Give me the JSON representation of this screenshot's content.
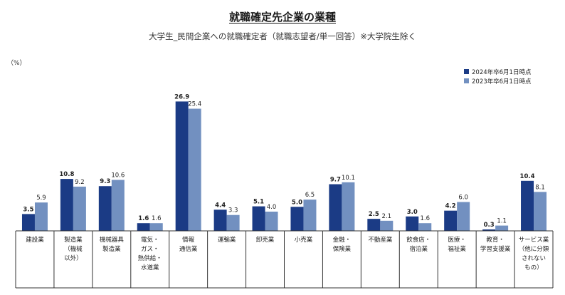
{
  "chart_data": {
    "type": "bar",
    "title": "就職確定先企業の業種",
    "subtitle": "大学生_民間企業への就職確定者（就職志望者/単一回答）※大学院生除く",
    "ylabel": "（%）",
    "ylim": [
      0,
      28
    ],
    "grid": false,
    "legend_position": "top-right",
    "categories": [
      "建設業",
      "製造業\n（機械\n以外）",
      "機械器具\n製造業",
      "電気・\nガス・\n熱供給・\n水道業",
      "情報\n通信業",
      "運輸業",
      "卸売業",
      "小売業",
      "金融・\n保険業",
      "不動産業",
      "飲食店・\n宿泊業",
      "医療・\n福祉業",
      "教育・\n学習支援業",
      "サービス業\n（他に分類\nされない\nもの）"
    ],
    "series": [
      {
        "name": "2024年卒6月1日時点",
        "color": "#1b3b85",
        "label_bold": true,
        "values": [
          3.5,
          10.8,
          9.3,
          1.6,
          26.9,
          4.4,
          5.1,
          5.0,
          9.7,
          2.5,
          3.0,
          4.2,
          0.3,
          10.4
        ],
        "labels": [
          "3.5",
          "10.8",
          "9.3",
          "1.6",
          "26.9",
          "4.4",
          "5.1",
          "5.0",
          "9.7",
          "2.5",
          "3.0",
          "4.2",
          "0.3",
          "10.4"
        ]
      },
      {
        "name": "2023年卒6月1日時点",
        "color": "#7290c0",
        "label_bold": false,
        "values": [
          5.9,
          9.2,
          10.6,
          1.6,
          25.4,
          3.3,
          4.0,
          6.5,
          10.1,
          2.1,
          1.6,
          6.0,
          1.1,
          8.1
        ],
        "labels": [
          "5.9",
          "9.2",
          "10.6",
          "1.6",
          "25.4",
          "3.3",
          "4.0",
          "6.5",
          "10.1",
          "2.1",
          "1.6",
          "6.0",
          "1.1",
          "8.1"
        ]
      }
    ]
  }
}
